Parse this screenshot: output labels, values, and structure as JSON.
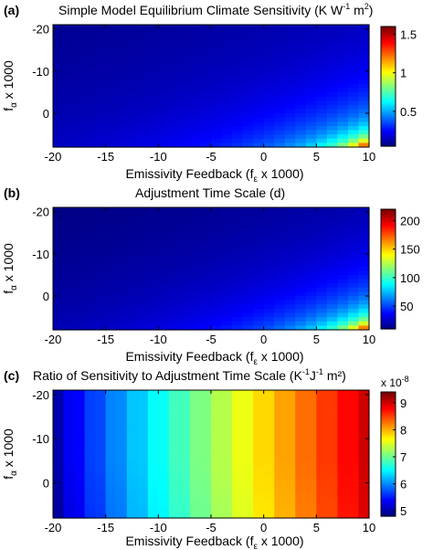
{
  "figure": {
    "panels": [
      {
        "letter": "(a)",
        "title": "Simple Model Equilibrium Climate Sensitivity (K W",
        "title_sup1": "-1",
        "title_mid": " m",
        "title_sup2": "2",
        "title_end": ")"
      },
      {
        "letter": "(b)",
        "title": "Adjustment Time Scale (d)",
        "title_sup1": "",
        "title_mid": "",
        "title_sup2": "",
        "title_end": ""
      },
      {
        "letter": "(c)",
        "title": "Ratio of Sensitivity to Adjustment Time Scale (K",
        "title_sup1": "-1",
        "title_mid": "J",
        "title_sup2": "-1",
        "title_end": " m²)"
      }
    ],
    "xlabel_main": "Emissivity Feedback (f",
    "xlabel_sub": "ε",
    "xlabel_end": " x 1000)",
    "ylabel_main": "f",
    "ylabel_sub": "α",
    "ylabel_end": " x 1000"
  },
  "chart_data": [
    {
      "type": "heatmap",
      "title": "Simple Model Equilibrium Climate Sensitivity (K W-1 m2)",
      "xlabel": "Emissivity Feedback (fε x 1000)",
      "ylabel": "fα x 1000",
      "xlim": [
        -20,
        10
      ],
      "ylim": [
        -21,
        8
      ],
      "y_reversed": true,
      "x_ticks": [
        -20,
        -15,
        -10,
        -5,
        0,
        5,
        10
      ],
      "y_ticks": [
        -20,
        -10,
        0
      ],
      "colorbar_ticks": [
        0.5,
        1,
        1.5
      ],
      "colorbar_tick_labels": [
        "0.5",
        "1",
        "1.5"
      ],
      "colorbar_range": [
        0.05,
        1.6
      ],
      "colormap": "jet",
      "grid": false,
      "nx": 30,
      "ny": 29,
      "model": "reciprocal",
      "corner_value": 1.6,
      "corner_xy": [
        10,
        8
      ],
      "min_value": 0.05
    },
    {
      "type": "heatmap",
      "title": "Adjustment Time Scale (d)",
      "xlabel": "Emissivity Feedback (fε x 1000)",
      "ylabel": "fα x 1000",
      "xlim": [
        -20,
        10
      ],
      "ylim": [
        -21,
        8
      ],
      "y_reversed": true,
      "x_ticks": [
        -20,
        -15,
        -10,
        -5,
        0,
        5,
        10
      ],
      "y_ticks": [
        -20,
        -10,
        0
      ],
      "colorbar_ticks": [
        50,
        100,
        150,
        200
      ],
      "colorbar_tick_labels": [
        "50",
        "100",
        "150",
        "200"
      ],
      "colorbar_range": [
        10,
        220
      ],
      "colormap": "jet",
      "grid": false,
      "nx": 30,
      "ny": 29,
      "model": "reciprocal",
      "corner_value": 220,
      "corner_xy": [
        10,
        8
      ],
      "min_value": 10
    },
    {
      "type": "heatmap",
      "title": "Ratio of Sensitivity to Adjustment Time Scale (K-1 J-1 m2)",
      "xlabel": "Emissivity Feedback (fε x 1000)",
      "ylabel": "fα x 1000",
      "xlim": [
        -20,
        10
      ],
      "ylim": [
        -21,
        8
      ],
      "y_reversed": true,
      "x_ticks": [
        -20,
        -15,
        -10,
        -5,
        0,
        5,
        10
      ],
      "y_ticks": [
        -20,
        -10,
        0
      ],
      "colorbar_ticks": [
        5,
        6,
        7,
        8,
        9
      ],
      "colorbar_tick_labels": [
        "5",
        "6",
        "7",
        "8",
        "9"
      ],
      "colorbar_multiplier": "x 10",
      "colorbar_exponent": "-8",
      "colorbar_range": [
        4.8,
        9.4
      ],
      "colormap": "jet",
      "grid": false,
      "nx": 30,
      "ny": 29,
      "model": "linear_x",
      "value_at_xmin": 5.0,
      "value_at_xmax": 9.1
    }
  ]
}
